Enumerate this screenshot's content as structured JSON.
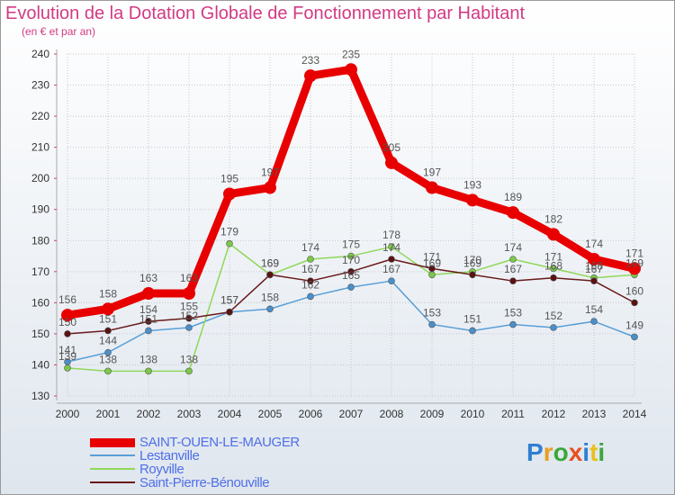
{
  "chart_data": {
    "type": "line",
    "title": "Evolution de la Dotation Globale de Fonctionnement par Habitant",
    "subtitle": "(en € et par an)",
    "categories": [
      "2000",
      "2001",
      "2002",
      "2003",
      "2004",
      "2005",
      "2006",
      "2007",
      "2008",
      "2009",
      "2010",
      "2011",
      "2012",
      "2013",
      "2014"
    ],
    "ylim": [
      130,
      240
    ],
    "yticks": [
      130,
      140,
      150,
      160,
      170,
      180,
      190,
      200,
      210,
      220,
      230,
      240
    ],
    "series": [
      {
        "name": "Lestanville",
        "color": "#5a9fd6",
        "marker": "#4a8fca",
        "values": [
          141,
          144,
          151,
          152,
          157,
          158,
          162,
          165,
          167,
          153,
          151,
          153,
          152,
          154,
          149
        ]
      },
      {
        "name": "Royville",
        "color": "#8fd85a",
        "marker": "#7cc84a",
        "values": [
          139,
          138,
          138,
          138,
          179,
          169,
          174,
          175,
          178,
          169,
          170,
          174,
          171,
          168,
          169
        ]
      },
      {
        "name": "Saint-Pierre-Bénouville",
        "color": "#6a1a1a",
        "marker": "#5a1212",
        "values": [
          150,
          151,
          154,
          155,
          157,
          169,
          167,
          170,
          174,
          171,
          169,
          167,
          168,
          167,
          160
        ]
      },
      {
        "name": "SAINT-OUEN-LE-MAUGER",
        "color": "#e80000",
        "marker": "#e80000",
        "values": [
          156,
          158,
          163,
          163,
          195,
          197,
          233,
          235,
          205,
          197,
          193,
          189,
          182,
          174,
          171
        ]
      }
    ]
  },
  "legend": {
    "items": [
      {
        "label": "SAINT-OUEN-LE-MAUGER",
        "color": "#e80000"
      },
      {
        "label": "Lestanville",
        "color": "#5a9fd6"
      },
      {
        "label": "Royville",
        "color": "#8fd85a"
      },
      {
        "label": "Saint-Pierre-Bénouville",
        "color": "#6a1a1a"
      }
    ],
    "label_color": "#4f6fe8"
  },
  "logo": {
    "text": "Proxiti"
  }
}
